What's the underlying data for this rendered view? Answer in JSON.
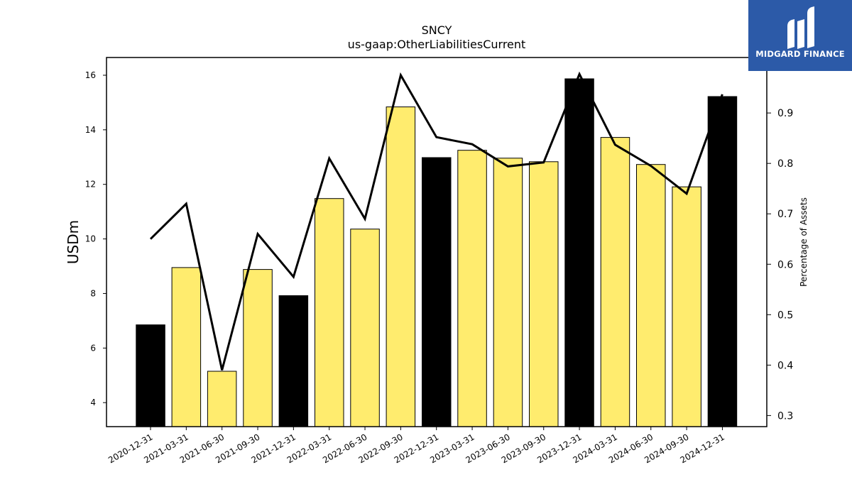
{
  "chart_data": {
    "type": "bar",
    "title": "SNCY",
    "subtitle": "us-gaap:OtherLiabilitiesCurrent",
    "ylabel": "USDm",
    "y2label": "Percentage of Assets",
    "categories": [
      "2020-12-31",
      "2021-03-31",
      "2021-06-30",
      "2021-09-30",
      "2021-12-31",
      "2022-03-31",
      "2022-06-30",
      "2022-09-30",
      "2022-12-31",
      "2023-03-31",
      "2023-06-30",
      "2023-09-30",
      "2023-12-31",
      "2024-03-31",
      "2024-06-30",
      "2024-09-30",
      "2024-12-31"
    ],
    "series": [
      {
        "type": "bar",
        "axis": "left",
        "values": [
          6.85,
          8.95,
          5.15,
          8.88,
          7.92,
          11.48,
          10.36,
          14.84,
          12.98,
          13.25,
          12.96,
          12.83,
          15.87,
          13.72,
          12.73,
          11.91,
          15.22
        ],
        "colors": [
          "#000000",
          "#ffec6e",
          "#ffec6e",
          "#ffec6e",
          "#000000",
          "#ffec6e",
          "#ffec6e",
          "#ffec6e",
          "#000000",
          "#ffec6e",
          "#ffec6e",
          "#ffec6e",
          "#000000",
          "#ffec6e",
          "#ffec6e",
          "#ffec6e",
          "#000000"
        ]
      },
      {
        "type": "line",
        "axis": "right",
        "color": "#000000",
        "values": [
          0.65,
          0.72,
          0.39,
          0.66,
          0.575,
          0.81,
          0.69,
          0.975,
          0.852,
          0.838,
          0.794,
          0.802,
          0.977,
          0.837,
          0.795,
          0.74,
          0.937
        ]
      }
    ],
    "ylim": [
      3.12,
      16.65
    ],
    "yticks": [
      4,
      6,
      8,
      10,
      12,
      14,
      16
    ],
    "y2lim": [
      0.278,
      1.01
    ],
    "y2ticks": [
      "0.3",
      "0.4",
      "0.5",
      "0.6",
      "0.7",
      "0.8",
      "0.9"
    ],
    "grid": false,
    "legend": "none"
  },
  "logo": {
    "brand": "MIDGARD FINANCE"
  }
}
